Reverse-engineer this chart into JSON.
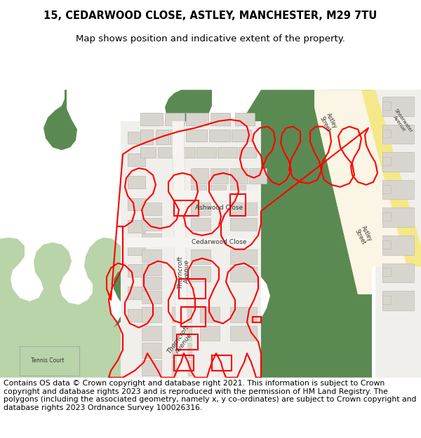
{
  "title": "15, CEDARWOOD CLOSE, ASTLEY, MANCHESTER, M29 7TU",
  "subtitle": "Map shows position and indicative extent of the property.",
  "footer": "Contains OS data © Crown copyright and database right 2021. This information is subject to Crown copyright and database rights 2023 and is reproduced with the permission of HM Land Registry. The polygons (including the associated geometry, namely x, y co-ordinates) are subject to Crown copyright and database rights 2023 Ordnance Survey 100026316.",
  "title_fontsize": 10.5,
  "subtitle_fontsize": 9.5,
  "footer_fontsize": 7.8,
  "colors": {
    "bg": "#efefec",
    "green_light": "#b8d4a8",
    "green_dark": "#5a8a52",
    "road_yellow": "#f5e888",
    "road_cream": "#faf5e4",
    "residential": "#f0efec",
    "building": "#d8d5cf",
    "building_edge": "#b8b5af",
    "red": "#ff0000",
    "white_road": "#ffffff",
    "text": "#333333"
  },
  "fig_width": 6.0,
  "fig_height": 6.25
}
